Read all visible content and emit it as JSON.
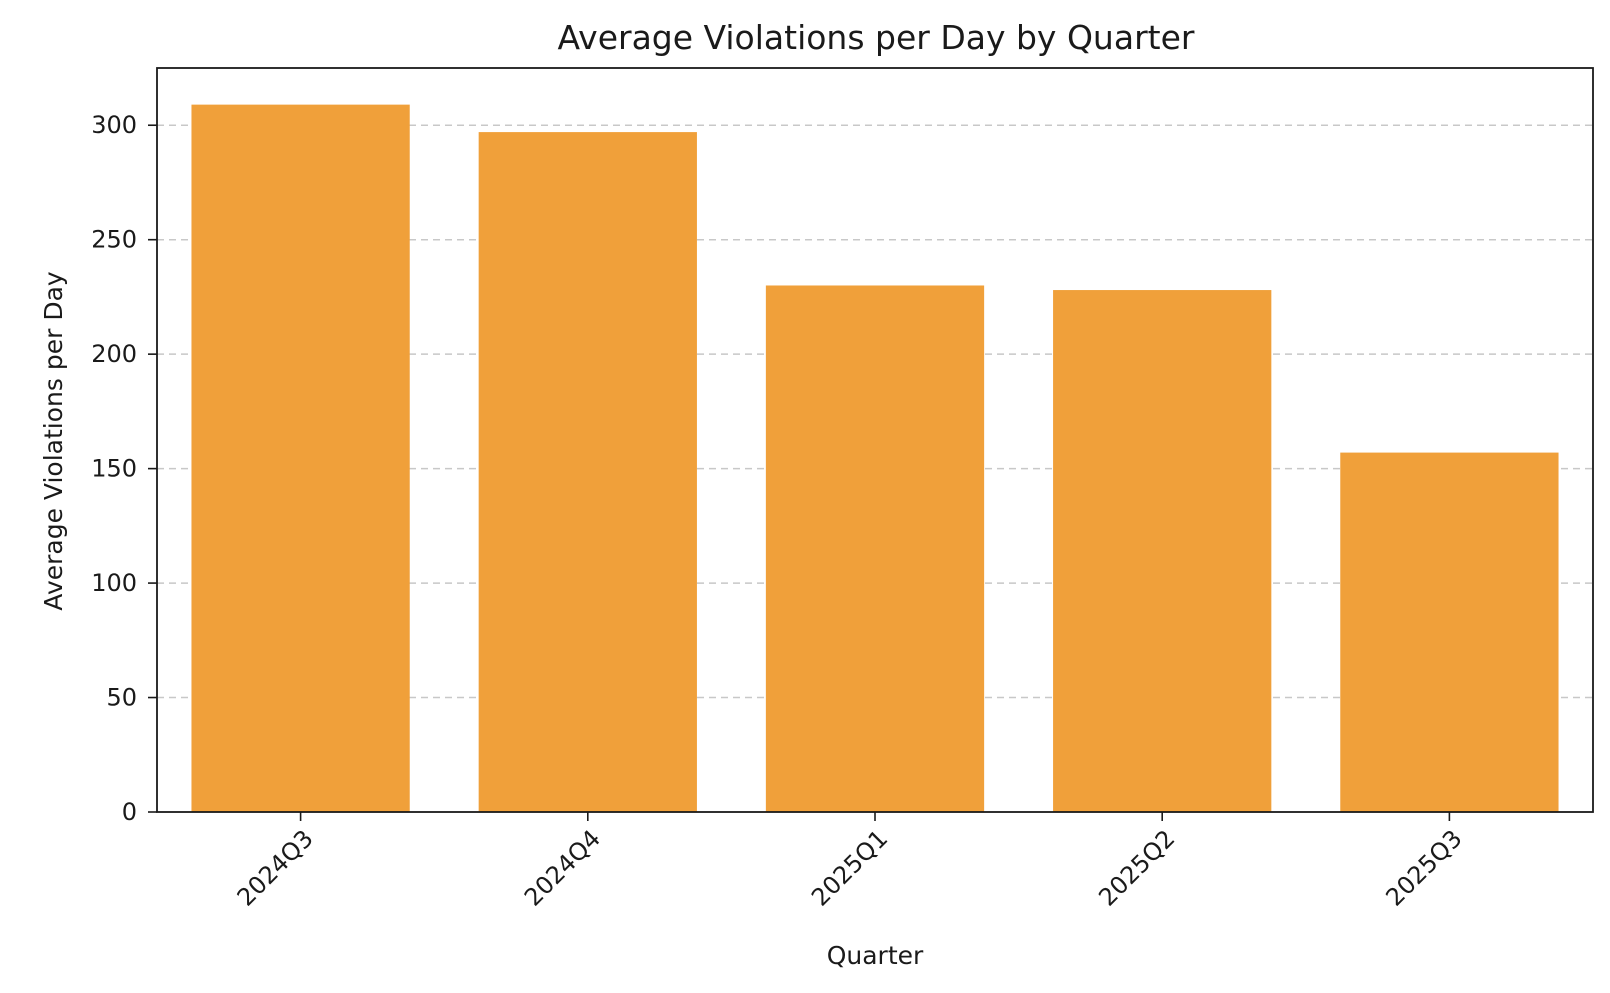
{
  "chart_data": {
    "type": "bar",
    "title": "Average Violations per Day by Quarter",
    "xlabel": "Quarter",
    "ylabel": "Average Violations per Day",
    "categories": [
      "2024Q3",
      "2024Q4",
      "2025Q1",
      "2025Q2",
      "2025Q3"
    ],
    "values": [
      309,
      297,
      230,
      228,
      157
    ],
    "ylim": [
      0,
      325
    ],
    "yticks": [
      0,
      50,
      100,
      150,
      200,
      250,
      300
    ],
    "grid": "horizontal, dashed",
    "bar_color": "#f0a03a"
  }
}
